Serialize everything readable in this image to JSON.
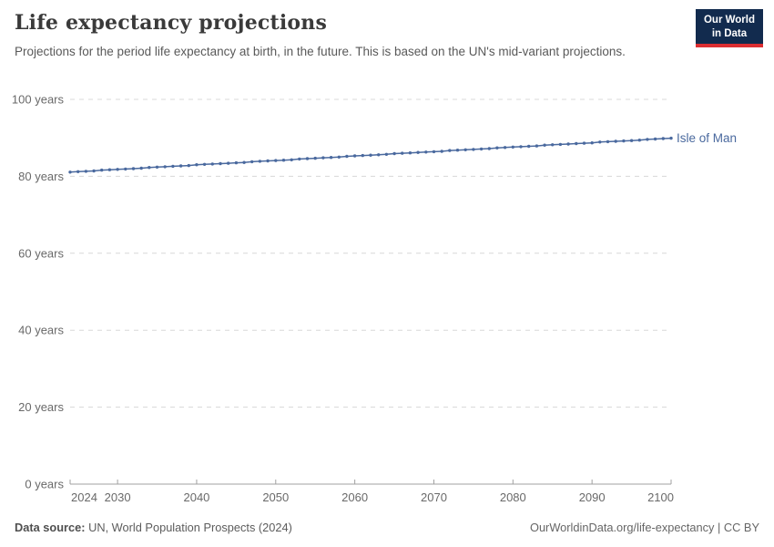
{
  "header": {
    "title": "Life expectancy projections",
    "subtitle": "Projections for the period life expectancy at birth, in the future. This is based on the UN's mid-variant projections.",
    "logo": {
      "line1": "Our World",
      "line2": "in Data"
    }
  },
  "colors": {
    "series_blue": "#4a699e",
    "logo_navy": "#122b4e",
    "logo_red": "#dc2e32",
    "gridline": "#d8d8d8",
    "axis": "#a0a0a0",
    "tick_label": "#696969",
    "title_text": "#3a3a3a",
    "subtitle_text": "#595959"
  },
  "chart_data": {
    "type": "line",
    "title": "Life expectancy projections",
    "xlabel": "",
    "ylabel": "",
    "xlim": [
      2024,
      2100
    ],
    "ylim": [
      0,
      100
    ],
    "grid": "horizontal-dashed",
    "legend_position": "end-of-line-label",
    "x_ticks": [
      2024,
      2030,
      2040,
      2050,
      2060,
      2070,
      2080,
      2090,
      2100
    ],
    "y_ticks": [
      {
        "value": 0,
        "label": "0 years"
      },
      {
        "value": 20,
        "label": "20 years"
      },
      {
        "value": 40,
        "label": "40 years"
      },
      {
        "value": 60,
        "label": "60 years"
      },
      {
        "value": 80,
        "label": "80 years"
      },
      {
        "value": 100,
        "label": "100 years"
      }
    ],
    "series": [
      {
        "name": "Isle of Man",
        "color": "#4a699e",
        "x": [
          2024,
          2025,
          2026,
          2027,
          2028,
          2029,
          2030,
          2031,
          2032,
          2033,
          2034,
          2035,
          2036,
          2037,
          2038,
          2039,
          2040,
          2041,
          2042,
          2043,
          2044,
          2045,
          2046,
          2047,
          2048,
          2049,
          2050,
          2051,
          2052,
          2053,
          2054,
          2055,
          2056,
          2057,
          2058,
          2059,
          2060,
          2061,
          2062,
          2063,
          2064,
          2065,
          2066,
          2067,
          2068,
          2069,
          2070,
          2071,
          2072,
          2073,
          2074,
          2075,
          2076,
          2077,
          2078,
          2079,
          2080,
          2081,
          2082,
          2083,
          2084,
          2085,
          2086,
          2087,
          2088,
          2089,
          2090,
          2091,
          2092,
          2093,
          2094,
          2095,
          2096,
          2097,
          2098,
          2099,
          2100
        ],
        "values": [
          81.1,
          81.2,
          81.3,
          81.4,
          81.6,
          81.7,
          81.8,
          81.9,
          82.0,
          82.1,
          82.3,
          82.4,
          82.5,
          82.6,
          82.7,
          82.8,
          83.0,
          83.1,
          83.2,
          83.3,
          83.4,
          83.5,
          83.6,
          83.8,
          83.9,
          84.0,
          84.1,
          84.2,
          84.3,
          84.5,
          84.6,
          84.7,
          84.8,
          84.9,
          85.0,
          85.2,
          85.3,
          85.4,
          85.5,
          85.6,
          85.7,
          85.9,
          86.0,
          86.1,
          86.2,
          86.3,
          86.4,
          86.5,
          86.7,
          86.8,
          86.9,
          87.0,
          87.1,
          87.2,
          87.4,
          87.5,
          87.6,
          87.7,
          87.8,
          87.9,
          88.1,
          88.2,
          88.3,
          88.4,
          88.5,
          88.6,
          88.7,
          88.9,
          89.0,
          89.1,
          89.2,
          89.3,
          89.4,
          89.6,
          89.7,
          89.8,
          89.9
        ]
      }
    ]
  },
  "footer": {
    "source_label": "Data source:",
    "source_value": " UN, World Population Prospects (2024)",
    "credit": "OurWorldinData.org/life-expectancy | CC BY"
  }
}
